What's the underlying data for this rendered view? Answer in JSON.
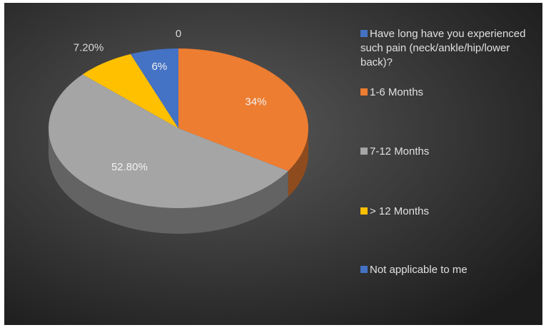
{
  "chart_data": {
    "type": "pie",
    "categories": [
      "Have long have you experienced such pain (neck/ankle/hip/lower back)?",
      "1-6 Months",
      "7-12 Months",
      "> 12 Months",
      "Not applicable to me"
    ],
    "values": [
      0,
      34,
      52.8,
      7.2,
      6
    ],
    "value_labels": [
      "0",
      "34%",
      "52.80%",
      "7.20%",
      "6%"
    ],
    "colors": [
      "#4472c4",
      "#ed7d31",
      "#a5a5a5",
      "#ffc000",
      "#4472c4"
    ],
    "legend": "right"
  }
}
